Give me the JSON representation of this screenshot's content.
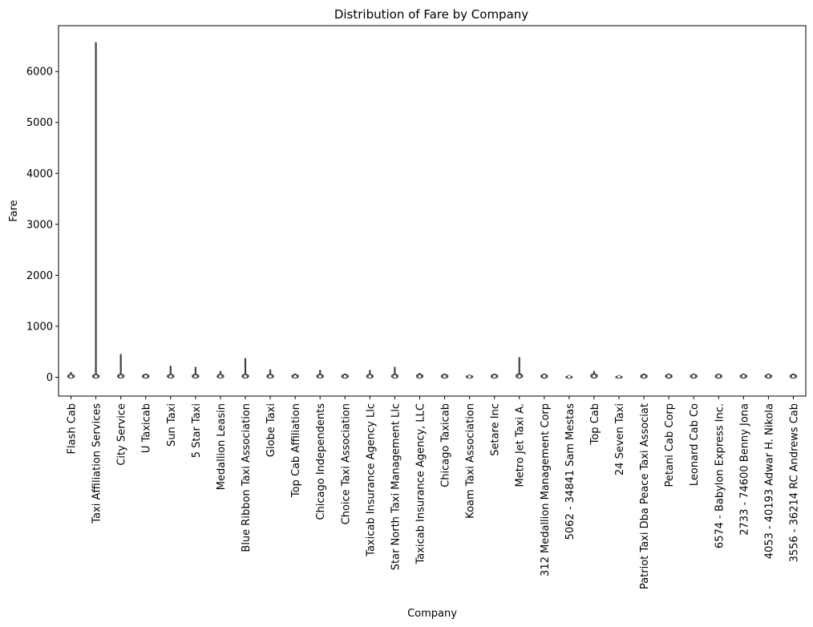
{
  "chart_data": {
    "type": "violin",
    "title": "Distribution of Fare by Company",
    "xlabel": "Company",
    "ylabel": "Fare",
    "ylim": [
      -370,
      6900
    ],
    "yticks": [
      0,
      1000,
      2000,
      3000,
      4000,
      5000,
      6000
    ],
    "ytick_labels": [
      "0",
      "1000",
      "2000",
      "3000",
      "4000",
      "5000",
      "6000"
    ],
    "grid": false,
    "legend": "none",
    "series_color": "#4c72b0",
    "line_color": "#404040",
    "categories": [
      {
        "name": "Flash Cab",
        "min": 0,
        "max": 90,
        "q1": 8,
        "q3": 30,
        "median": 14
      },
      {
        "name": "Taxi Affiliation Services",
        "min": 0,
        "max": 6560,
        "q1": 8,
        "q3": 30,
        "median": 14
      },
      {
        "name": "City Service",
        "min": 0,
        "max": 440,
        "q1": 8,
        "q3": 32,
        "median": 15
      },
      {
        "name": "U Taxicab",
        "min": 0,
        "max": 60,
        "q1": 8,
        "q3": 35,
        "median": 16
      },
      {
        "name": "Sun Taxi",
        "min": 0,
        "max": 210,
        "q1": 8,
        "q3": 30,
        "median": 14
      },
      {
        "name": "5 Star Taxi",
        "min": 0,
        "max": 190,
        "q1": 8,
        "q3": 32,
        "median": 15
      },
      {
        "name": "Medallion Leasin",
        "min": 0,
        "max": 110,
        "q1": 8,
        "q3": 30,
        "median": 14
      },
      {
        "name": "Blue Ribbon Taxi Association",
        "min": 0,
        "max": 360,
        "q1": 8,
        "q3": 32,
        "median": 15
      },
      {
        "name": "Globe Taxi",
        "min": 0,
        "max": 140,
        "q1": 8,
        "q3": 30,
        "median": 14
      },
      {
        "name": "Top Cab Affiliation",
        "min": 0,
        "max": 60,
        "q1": 8,
        "q3": 28,
        "median": 13
      },
      {
        "name": "Chicago Independents",
        "min": 0,
        "max": 130,
        "q1": 8,
        "q3": 30,
        "median": 14
      },
      {
        "name": "Choice Taxi Association",
        "min": 0,
        "max": 60,
        "q1": 8,
        "q3": 32,
        "median": 15
      },
      {
        "name": "Taxicab Insurance Agency Llc",
        "min": 0,
        "max": 130,
        "q1": 8,
        "q3": 30,
        "median": 14
      },
      {
        "name": "Star North Taxi Management Llc",
        "min": 0,
        "max": 190,
        "q1": 8,
        "q3": 32,
        "median": 15
      },
      {
        "name": "Taxicab Insurance Agency, LLC",
        "min": 0,
        "max": 70,
        "q1": 8,
        "q3": 32,
        "median": 15
      },
      {
        "name": "Chicago Taxicab",
        "min": 0,
        "max": 60,
        "q1": 8,
        "q3": 35,
        "median": 16
      },
      {
        "name": "Koam Taxi Association",
        "min": 0,
        "max": 40,
        "q1": 6,
        "q3": 20,
        "median": 11
      },
      {
        "name": "Setare Inc",
        "min": 0,
        "max": 60,
        "q1": 8,
        "q3": 35,
        "median": 16
      },
      {
        "name": "Metro Jet Taxi A.",
        "min": 0,
        "max": 380,
        "q1": 8,
        "q3": 40,
        "median": 18
      },
      {
        "name": "312 Medallion Management Corp",
        "min": 0,
        "max": 60,
        "q1": 10,
        "q3": 40,
        "median": 20
      },
      {
        "name": "5062 - 34841 Sam Mestas",
        "min": 0,
        "max": 25,
        "q1": 6,
        "q3": 14,
        "median": 9
      },
      {
        "name": "Top Cab",
        "min": 0,
        "max": 110,
        "q1": 8,
        "q3": 40,
        "median": 20
      },
      {
        "name": "24 Seven Taxi",
        "min": 0,
        "max": 25,
        "q1": 6,
        "q3": 14,
        "median": 9
      },
      {
        "name": "Patriot Taxi Dba Peace Taxi Associat",
        "min": 0,
        "max": 60,
        "q1": 8,
        "q3": 32,
        "median": 15
      },
      {
        "name": "Petani Cab Corp",
        "min": 0,
        "max": 60,
        "q1": 10,
        "q3": 40,
        "median": 20
      },
      {
        "name": "Leonard Cab Co",
        "min": 0,
        "max": 60,
        "q1": 10,
        "q3": 40,
        "median": 20
      },
      {
        "name": "6574 - Babylon Express Inc.",
        "min": 0,
        "max": 60,
        "q1": 10,
        "q3": 40,
        "median": 20
      },
      {
        "name": "2733 - 74600 Benny Jona",
        "min": 0,
        "max": 60,
        "q1": 10,
        "q3": 40,
        "median": 20
      },
      {
        "name": "4053 - 40193 Adwar H. Nikola",
        "min": 0,
        "max": 60,
        "q1": 10,
        "q3": 40,
        "median": 20
      },
      {
        "name": "3556 - 36214 RC Andrews Cab",
        "min": 0,
        "max": 60,
        "q1": 8,
        "q3": 32,
        "median": 15
      }
    ]
  }
}
